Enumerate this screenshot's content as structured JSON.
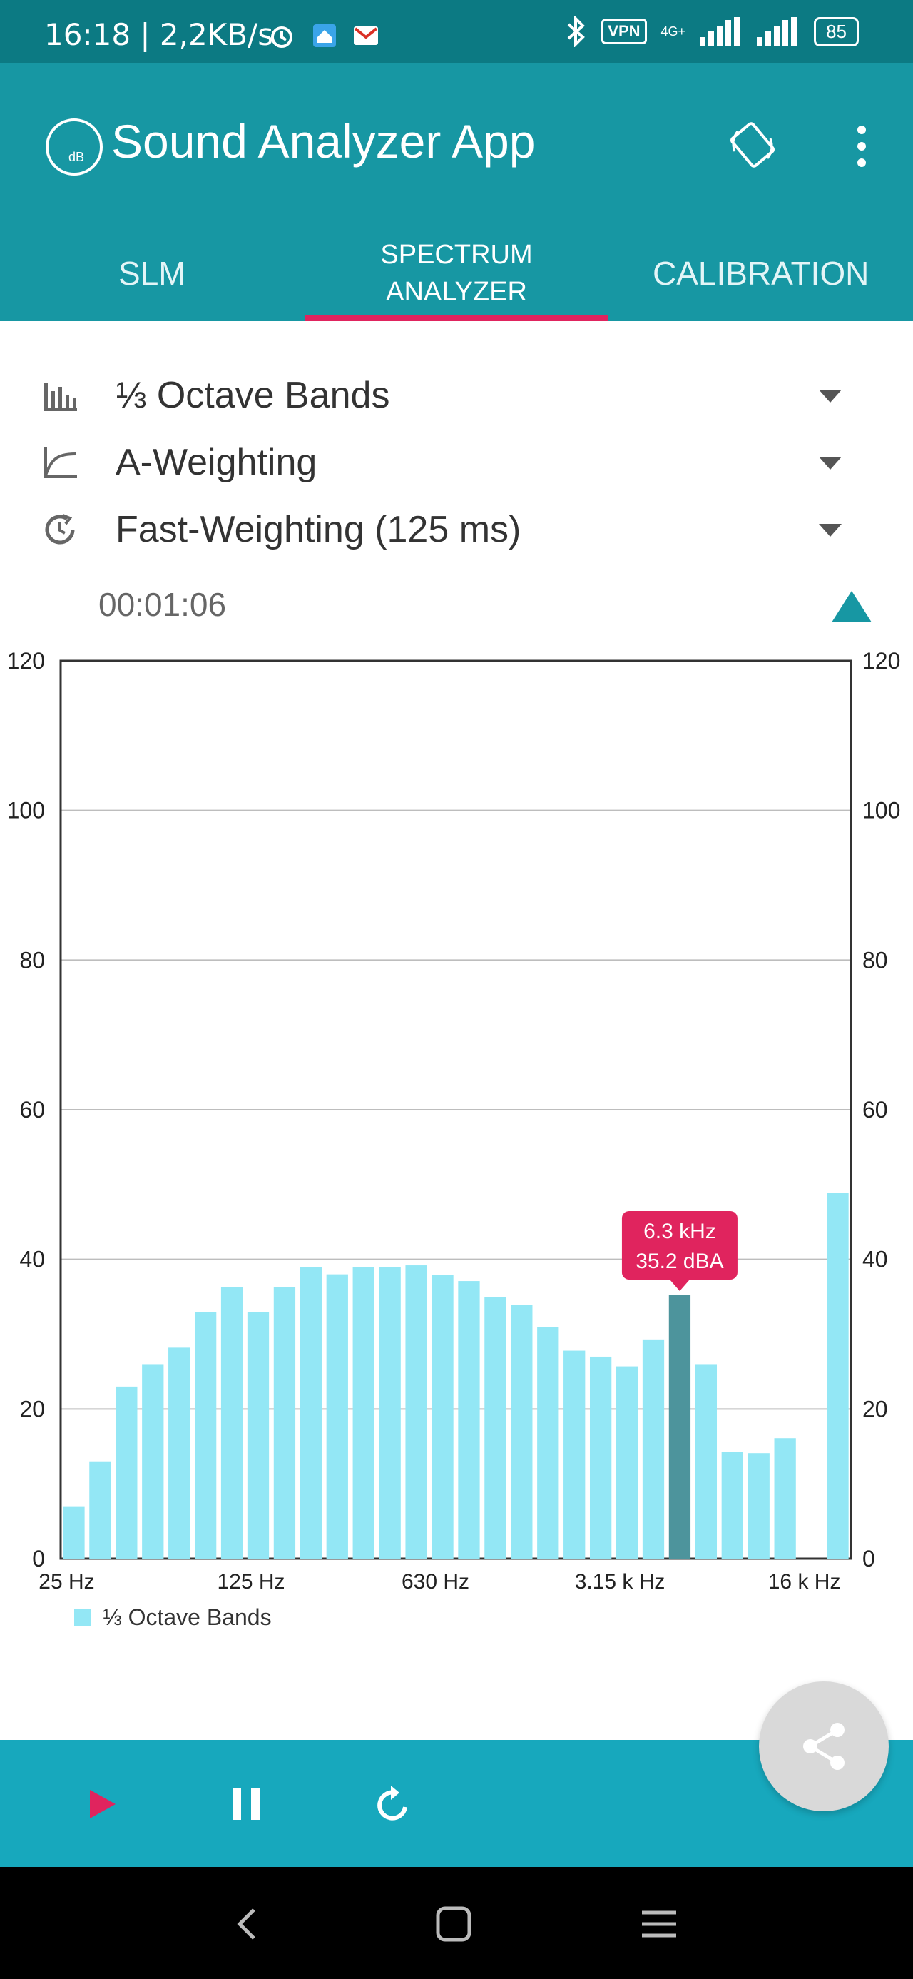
{
  "status_bar": {
    "time": "16:18 | 2,2KB/s",
    "vpn": "VPN",
    "network": "4G+",
    "battery": "85",
    "icons": [
      "alarm-icon",
      "home-app-icon",
      "gmail-icon",
      "bluetooth-icon",
      "signal-icon",
      "signal-icon",
      "battery-icon"
    ]
  },
  "app_bar": {
    "logo_text": "dB",
    "title": "Sound Analyzer App",
    "icons": [
      "screen-rotation-icon",
      "more-vert-icon"
    ]
  },
  "tabs": [
    {
      "label": "SLM",
      "active": false
    },
    {
      "label_line1": "SPECTRUM",
      "label_line2": "ANALYZER",
      "active": true
    },
    {
      "label": "CALIBRATION",
      "active": false
    }
  ],
  "settings": [
    {
      "label": "⅓ Octave Bands",
      "icon": "bar-chart-icon"
    },
    {
      "label": "A-Weighting",
      "icon": "weighting-curve-icon"
    },
    {
      "label": "Fast-Weighting (125 ms)",
      "icon": "timer-icon"
    }
  ],
  "timer": "00:01:06",
  "chart_data": {
    "type": "bar",
    "legend": "⅓ Octave Bands",
    "ylim": [
      0,
      120
    ],
    "y_ticks": [
      "0",
      "20",
      "40",
      "60",
      "80",
      "100",
      "120"
    ],
    "x_ticks": [
      "25 Hz",
      "125 Hz",
      "630 Hz",
      "3.15 k Hz",
      "16 k Hz"
    ],
    "values": [
      7,
      13,
      23,
      26,
      28.2,
      33,
      36.3,
      33,
      36.3,
      39,
      38,
      39,
      39,
      39.2,
      37.9,
      37.1,
      35,
      33.9,
      31,
      27.8,
      27,
      25.7,
      29.3,
      35.2,
      26,
      14.3,
      14.1,
      16.1,
      0,
      48.9
    ],
    "highlight_index": 23,
    "tooltip_line1": "6.3 kHz",
    "tooltip_line2": "35.2 dBA",
    "bar_color": "#93e7f5",
    "highlight_color": "#4d949c",
    "tooltip_color": "#e0245e"
  },
  "colors": {
    "status_bar": "#0c7a83",
    "app_bar": "#1797a3",
    "tab_indicator": "#e0245e",
    "bottom_bar": "#17a8bd",
    "play": "#e0245e"
  },
  "controls": [
    "play-icon",
    "pause-icon",
    "reset-icon",
    "share-icon"
  ],
  "nav": [
    "back-icon",
    "home-icon",
    "recents-icon"
  ]
}
